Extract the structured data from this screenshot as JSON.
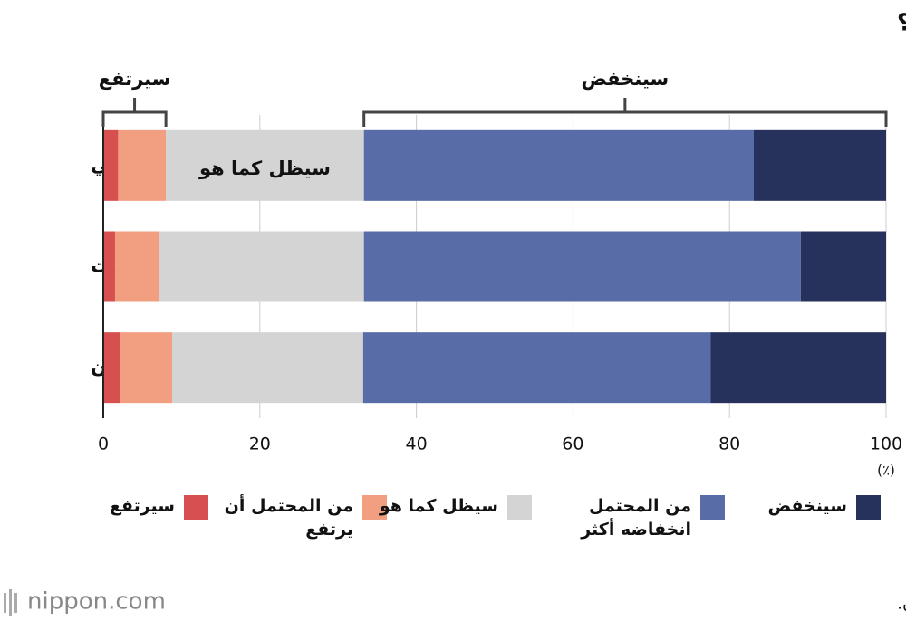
{
  "chart_data": {
    "type": "stacked-bar-horizontal",
    "title": "كيف ترى تغير ترتيب الناتج المحلي الإجمالي لليابان في المستقبل؟",
    "bracket_rise_label": "سيرتفع",
    "bracket_fall_label": "سينخفض",
    "bar_annotation": "سيظل كما هو",
    "x_unit": "(٪)",
    "categories": [
      "الإجمالي",
      "فتيات",
      "فتيان"
    ],
    "series": [
      {
        "name": "سيرتفع",
        "color": "#d6504f",
        "values": [
          1.9,
          1.5,
          2.2
        ]
      },
      {
        "name": "من المحتمل أن يرتفع",
        "color": "#f29e80",
        "values": [
          6.1,
          5.6,
          6.6
        ]
      },
      {
        "name": "سيظل كما هو",
        "color": "#d4d4d4",
        "values": [
          25.3,
          26.2,
          24.4
        ]
      },
      {
        "name": "من المحتمل انخفاضه أكثر",
        "color": "#586ca8",
        "values": [
          49.8,
          55.8,
          44.4
        ]
      },
      {
        "name": "سينخفض",
        "color": "#27325c",
        "values": [
          16.9,
          10.9,
          22.4
        ]
      }
    ],
    "xlim": [
      0,
      100
    ],
    "xticks": [
      0,
      20,
      40,
      60,
      80,
      100
    ],
    "grid": true
  },
  "footer": {
    "source": "تم إعداد البيانات بواسطة Nippon.com بناءً على بيانات من مؤسسة نيبون.",
    "logo": "nippon.com"
  }
}
